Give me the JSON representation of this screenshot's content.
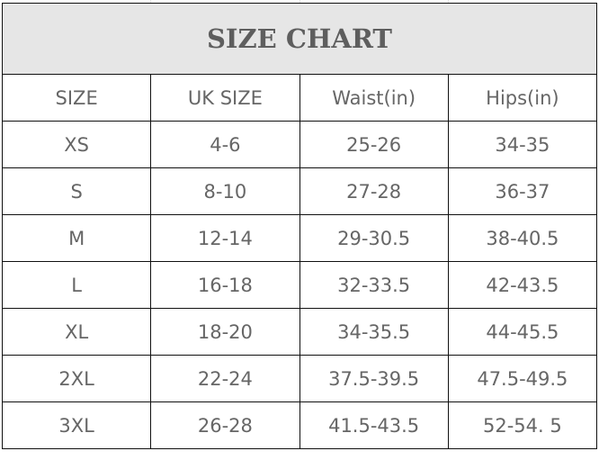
{
  "title": "SIZE CHART",
  "headers": [
    "SIZE",
    "UK SIZE",
    "Waist(in)",
    "Hips(in)"
  ],
  "rows": [
    [
      "XS",
      "4-6",
      "25-26",
      "34-35"
    ],
    [
      "S",
      "8-10",
      "27-28",
      "36-37"
    ],
    [
      "M",
      "12-14",
      "29-30.5",
      "38-40.5"
    ],
    [
      "L",
      "16-18",
      "32-33.5",
      "42-43.5"
    ],
    [
      "XL",
      "18-20",
      "34-35.5",
      "44-45.5"
    ],
    [
      "2XL",
      "22-24",
      "37.5-39.5",
      "47.5-49.5"
    ],
    [
      "3XL",
      "26-28",
      "41.5-43.5",
      "52-54. 5"
    ]
  ],
  "colors": {
    "title_bg": "#e6e6e6",
    "text": "#666666",
    "border": "#111111"
  }
}
